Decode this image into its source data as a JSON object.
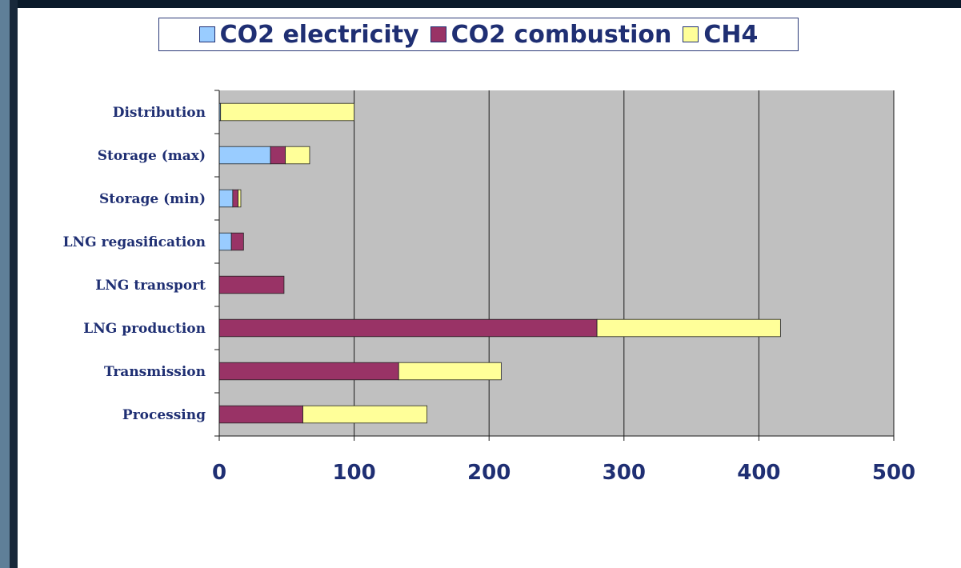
{
  "chart_data": {
    "type": "bar",
    "orientation": "horizontal",
    "stacked": true,
    "categories": [
      "Processing",
      "Transmission",
      "LNG production",
      "LNG transport",
      "LNG regasification",
      "Storage (min)",
      "Storage (max)",
      "Distribution"
    ],
    "series": [
      {
        "name": "CO2 electricity",
        "color": "#99ccff",
        "values": [
          0,
          0,
          0,
          0,
          9,
          10,
          38,
          1
        ]
      },
      {
        "name": "CO2 combustion",
        "color": "#993366",
        "values": [
          62,
          133,
          280,
          48,
          9,
          4,
          11,
          0
        ]
      },
      {
        "name": "CH4",
        "color": "#ffff99",
        "values": [
          92,
          76,
          136,
          0,
          0,
          2,
          18,
          99
        ]
      }
    ],
    "xlim": [
      0,
      500
    ],
    "x_ticks": [
      "0",
      "100",
      "200",
      "300",
      "400",
      "500"
    ],
    "grid": true,
    "legend_position": "top",
    "plot_background": "#c0c0c0",
    "xlabel": "",
    "ylabel": "",
    "title": ""
  }
}
